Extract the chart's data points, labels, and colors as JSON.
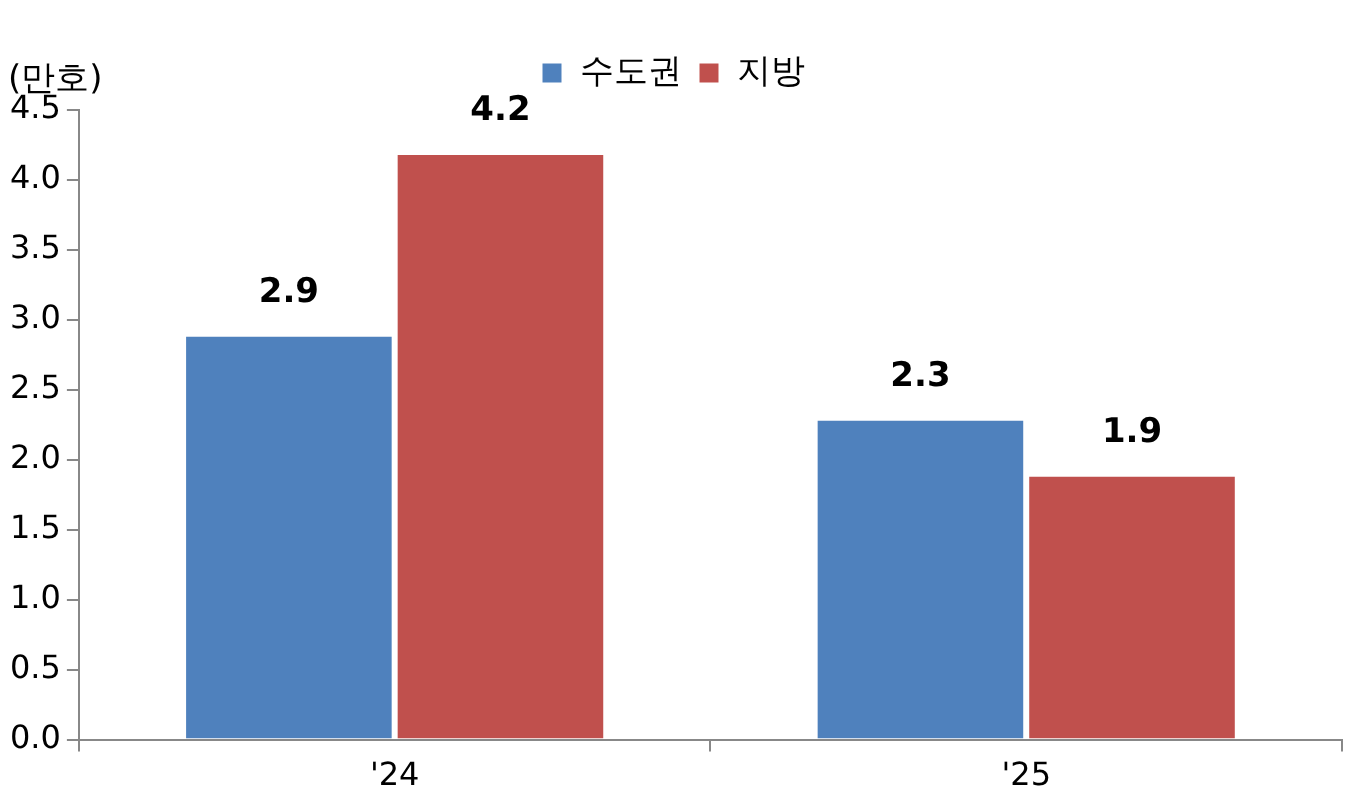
{
  "chart_data": {
    "type": "bar",
    "ylabel": "(만호)",
    "categories": [
      "'24",
      "'25"
    ],
    "series": [
      {
        "name": "수도권",
        "color": "#4f81bd",
        "values": [
          2.9,
          2.3
        ]
      },
      {
        "name": "지방",
        "color": "#c0504d",
        "values": [
          4.2,
          1.9
        ]
      }
    ],
    "ylim": [
      0,
      4.5
    ],
    "yticks": [
      {
        "value": 0,
        "label": "0.0"
      },
      {
        "value": 0.5,
        "label": "0.5"
      },
      {
        "value": 1,
        "label": "1.0"
      },
      {
        "value": 1.5,
        "label": "1.5"
      },
      {
        "value": 2,
        "label": "2.0"
      },
      {
        "value": 2.5,
        "label": "2.5"
      },
      {
        "value": 3,
        "label": "3.0"
      },
      {
        "value": 3.5,
        "label": "3.5"
      },
      {
        "value": 4,
        "label": "4.0"
      },
      {
        "value": 4.5,
        "label": "4.5"
      }
    ],
    "data_labels": true,
    "legend": "top",
    "grid": false
  }
}
